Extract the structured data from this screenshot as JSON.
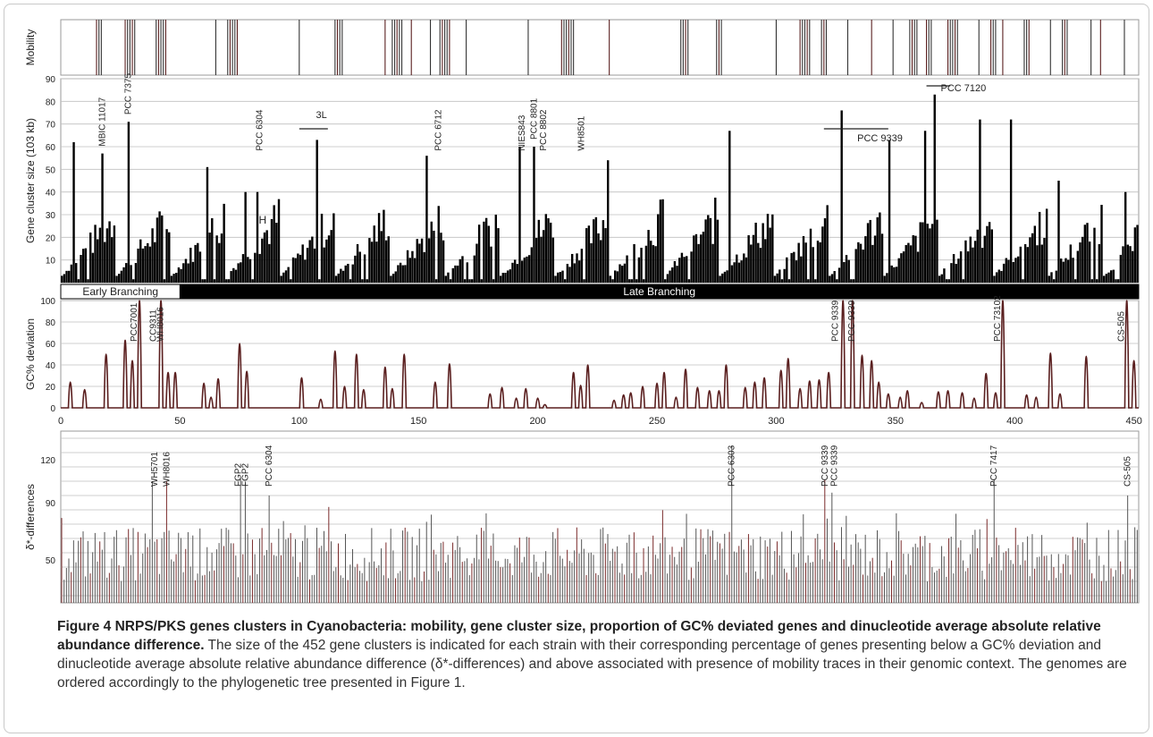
{
  "caption": {
    "title": "Figure 4 NRPS/PKS genes clusters in Cyanobacteria: mobility, gene cluster size, proportion of GC% deviated genes and dinucleotide average absolute relative abundance difference.",
    "body": "The size of the 452 gene clusters is indicated for each strain with their corresponding percentage of genes presenting below a GC% deviation and dinucleotide average absolute relative abundance difference (δ*-differences) and above associated with presence of mobility traces in their genomic context. The genomes are ordered accordingly to the phylogenetic tree presented in Figure 1."
  },
  "colors": {
    "bar": "#000000",
    "line": "#5a1f1f",
    "grid": "#bfbfbf",
    "tick": "#7a2a2a"
  },
  "chart_data": [
    {
      "type": "bar",
      "panel": "mobility",
      "ylabel": "Mobility",
      "n": 452,
      "mobility_positions": [
        15,
        16,
        17,
        27,
        28,
        29,
        30,
        31,
        40,
        41,
        42,
        43,
        44,
        65,
        70,
        71,
        72,
        73,
        74,
        100,
        115,
        116,
        117,
        118,
        136,
        139,
        140,
        141,
        142,
        143,
        147,
        155,
        159,
        160,
        161,
        162,
        163,
        170,
        196,
        210,
        211,
        212,
        213,
        214,
        215,
        230,
        260,
        261,
        262,
        263,
        275,
        276,
        277,
        300,
        310,
        311,
        312,
        313,
        314,
        319,
        320,
        321,
        330,
        340,
        349,
        356,
        357,
        358,
        359,
        363,
        364,
        365,
        372,
        373,
        374,
        375,
        376,
        385,
        390,
        391,
        392,
        395,
        404,
        405,
        406,
        415,
        420,
        421,
        422,
        432,
        436,
        446
      ]
    },
    {
      "type": "bar",
      "panel": "gene_cluster_size",
      "ylabel": "Gene cluster size (103 kb)",
      "ylim": [
        0,
        90
      ],
      "yticks": [
        10,
        20,
        30,
        40,
        50,
        60,
        70,
        80,
        90
      ],
      "highlighted_values": [
        {
          "x": 5,
          "y": 62
        },
        {
          "x": 17,
          "y": 57
        },
        {
          "x": 28,
          "y": 71
        },
        {
          "x": 61,
          "y": 51
        },
        {
          "x": 77,
          "y": 40
        },
        {
          "x": 82,
          "y": 40
        },
        {
          "x": 107,
          "y": 63
        },
        {
          "x": 153,
          "y": 56
        },
        {
          "x": 192,
          "y": 60
        },
        {
          "x": 198,
          "y": 60
        },
        {
          "x": 229,
          "y": 54
        },
        {
          "x": 280,
          "y": 67
        },
        {
          "x": 327,
          "y": 76
        },
        {
          "x": 347,
          "y": 63
        },
        {
          "x": 362,
          "y": 67
        },
        {
          "x": 366,
          "y": 83
        },
        {
          "x": 385,
          "y": 72
        },
        {
          "x": 398,
          "y": 72
        },
        {
          "x": 418,
          "y": 45
        },
        {
          "x": 446,
          "y": 40
        }
      ],
      "annotations": [
        {
          "text": "MBIC 11017",
          "x": 17
        },
        {
          "text": "PCC 7375",
          "x": 28
        },
        {
          "text": "3L",
          "x": 107
        },
        {
          "text": "PCC 6304",
          "x": 83
        },
        {
          "text": "H",
          "x": 83
        },
        {
          "text": "PCC 6712",
          "x": 158
        },
        {
          "text": "NIES843",
          "x": 193
        },
        {
          "text": "PCC 8801",
          "x": 198
        },
        {
          "text": "PCC 8802",
          "x": 202
        },
        {
          "text": "WH8501",
          "x": 218
        },
        {
          "text": "PCC 9339",
          "x": 334
        },
        {
          "text": "PCC 7120",
          "x": 369
        }
      ],
      "branches": [
        {
          "label": "Early Branching",
          "from": 0,
          "to": 50
        },
        {
          "label": "Late Branching",
          "from": 50,
          "to": 452
        }
      ]
    },
    {
      "type": "line",
      "panel": "gc_deviation",
      "ylabel": "GC% deviation",
      "ylim": [
        0,
        100
      ],
      "yticks": [
        0,
        20,
        40,
        60,
        80,
        100
      ],
      "xlim": [
        0,
        452
      ],
      "xticks": [
        0,
        50,
        100,
        150,
        200,
        250,
        300,
        350,
        400,
        450
      ],
      "peaks": [
        {
          "x": 4,
          "y": 24
        },
        {
          "x": 10,
          "y": 17
        },
        {
          "x": 19,
          "y": 50
        },
        {
          "x": 27,
          "y": 63
        },
        {
          "x": 30,
          "y": 44
        },
        {
          "x": 33,
          "y": 100
        },
        {
          "x": 42,
          "y": 100
        },
        {
          "x": 45,
          "y": 33
        },
        {
          "x": 48,
          "y": 33
        },
        {
          "x": 60,
          "y": 23
        },
        {
          "x": 63,
          "y": 10
        },
        {
          "x": 66,
          "y": 27
        },
        {
          "x": 75,
          "y": 60
        },
        {
          "x": 78,
          "y": 34
        },
        {
          "x": 101,
          "y": 28
        },
        {
          "x": 109,
          "y": 8
        },
        {
          "x": 115,
          "y": 53
        },
        {
          "x": 119,
          "y": 20
        },
        {
          "x": 124,
          "y": 50
        },
        {
          "x": 127,
          "y": 17
        },
        {
          "x": 136,
          "y": 38
        },
        {
          "x": 139,
          "y": 18
        },
        {
          "x": 144,
          "y": 50
        },
        {
          "x": 157,
          "y": 24
        },
        {
          "x": 163,
          "y": 41
        },
        {
          "x": 180,
          "y": 13
        },
        {
          "x": 185,
          "y": 19
        },
        {
          "x": 191,
          "y": 9
        },
        {
          "x": 195,
          "y": 18
        },
        {
          "x": 200,
          "y": 9
        },
        {
          "x": 203,
          "y": 3
        },
        {
          "x": 215,
          "y": 33
        },
        {
          "x": 218,
          "y": 21
        },
        {
          "x": 221,
          "y": 40
        },
        {
          "x": 232,
          "y": 7
        },
        {
          "x": 236,
          "y": 12
        },
        {
          "x": 239,
          "y": 14
        },
        {
          "x": 244,
          "y": 20
        },
        {
          "x": 250,
          "y": 23
        },
        {
          "x": 253,
          "y": 33
        },
        {
          "x": 258,
          "y": 10
        },
        {
          "x": 262,
          "y": 36
        },
        {
          "x": 267,
          "y": 19
        },
        {
          "x": 272,
          "y": 16
        },
        {
          "x": 276,
          "y": 16
        },
        {
          "x": 279,
          "y": 40
        },
        {
          "x": 287,
          "y": 19
        },
        {
          "x": 291,
          "y": 24
        },
        {
          "x": 295,
          "y": 28
        },
        {
          "x": 302,
          "y": 35
        },
        {
          "x": 305,
          "y": 46
        },
        {
          "x": 310,
          "y": 18
        },
        {
          "x": 314,
          "y": 25
        },
        {
          "x": 318,
          "y": 26
        },
        {
          "x": 322,
          "y": 33
        },
        {
          "x": 328,
          "y": 100
        },
        {
          "x": 332,
          "y": 100
        },
        {
          "x": 336,
          "y": 49
        },
        {
          "x": 340,
          "y": 44
        },
        {
          "x": 343,
          "y": 24
        },
        {
          "x": 347,
          "y": 13
        },
        {
          "x": 352,
          "y": 10
        },
        {
          "x": 355,
          "y": 16
        },
        {
          "x": 361,
          "y": 5
        },
        {
          "x": 368,
          "y": 15
        },
        {
          "x": 372,
          "y": 16
        },
        {
          "x": 378,
          "y": 14
        },
        {
          "x": 383,
          "y": 9
        },
        {
          "x": 388,
          "y": 32
        },
        {
          "x": 392,
          "y": 14
        },
        {
          "x": 395,
          "y": 100
        },
        {
          "x": 405,
          "y": 12
        },
        {
          "x": 409,
          "y": 10
        },
        {
          "x": 415,
          "y": 51
        },
        {
          "x": 419,
          "y": 13
        },
        {
          "x": 430,
          "y": 48
        },
        {
          "x": 447,
          "y": 100
        },
        {
          "x": 450,
          "y": 44
        }
      ],
      "annotations": [
        {
          "text": "PCC7001",
          "x": 33
        },
        {
          "text": "CC9311",
          "x": 41
        },
        {
          "text": "WH8016",
          "x": 44
        },
        {
          "text": "PCC 9339",
          "x": 327
        },
        {
          "text": "PCC 9339",
          "x": 334
        },
        {
          "text": "PCC 73102",
          "x": 395
        },
        {
          "text": "CS-505",
          "x": 447
        }
      ]
    },
    {
      "type": "bar",
      "panel": "delta_star",
      "ylabel": "δ*-differences",
      "yticks": [
        50,
        90,
        120
      ],
      "highlighted_values": [
        {
          "x": 38,
          "y": 105
        },
        {
          "x": 44,
          "y": 105
        },
        {
          "x": 75,
          "y": 107
        },
        {
          "x": 77,
          "y": 104
        },
        {
          "x": 87,
          "y": 95
        },
        {
          "x": 112,
          "y": 87
        },
        {
          "x": 281,
          "y": 130
        },
        {
          "x": 320,
          "y": 106
        },
        {
          "x": 323,
          "y": 97
        },
        {
          "x": 391,
          "y": 106
        },
        {
          "x": 447,
          "y": 95
        }
      ],
      "annotations": [
        {
          "text": "WH5701",
          "x": 39
        },
        {
          "text": "WH8016",
          "x": 44
        },
        {
          "text": "FGP2",
          "x": 74
        },
        {
          "text": "FGP2",
          "x": 77
        },
        {
          "text": "PCC 6304",
          "x": 87
        },
        {
          "text": "PCC 6303",
          "x": 281
        },
        {
          "text": "PCC 9339",
          "x": 320
        },
        {
          "text": "PCC 9339",
          "x": 324
        },
        {
          "text": "PCC 7417",
          "x": 391
        },
        {
          "text": "CS-505",
          "x": 447
        }
      ]
    }
  ]
}
